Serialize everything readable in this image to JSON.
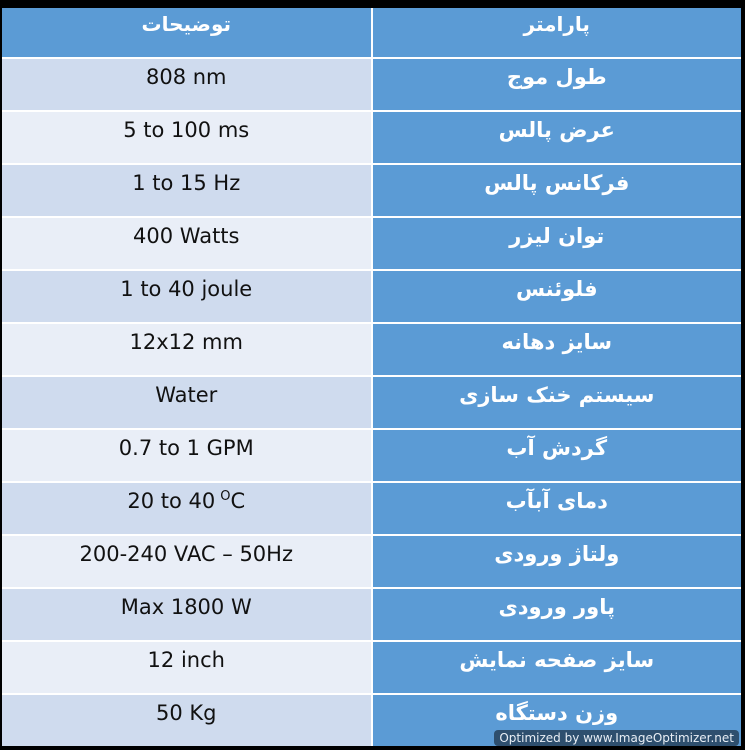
{
  "header": {
    "description": "توضیحات",
    "parameter": "پارامتر"
  },
  "rows": [
    {
      "parameter": "طول موج",
      "description": "808 nm"
    },
    {
      "parameter": "عرض پالس",
      "description": "5 to 100 ms"
    },
    {
      "parameter": "فرکانس پالس",
      "description": "1 to 15 Hz"
    },
    {
      "parameter": "توان لیزر",
      "description": "400 Watts"
    },
    {
      "parameter": "فلوئنس",
      "description": "1 to 40 joule"
    },
    {
      "parameter": "سایز دهانه",
      "description": "12x12 mm"
    },
    {
      "parameter": "سیستم خنک سازی",
      "description": "Water"
    },
    {
      "parameter": "گردش آب",
      "description": "0.7 to 1 GPM"
    },
    {
      "parameter": "دمای آبآب",
      "description": "20 to 40",
      "description_sup": "O",
      "description_suffix": "C"
    },
    {
      "parameter": "ولتاژ ورودی",
      "description": "200-240 VAC – 50Hz"
    },
    {
      "parameter": "پاور ورودی",
      "description": "Max 1800 W"
    },
    {
      "parameter": "سایز صفحه نمایش",
      "description": "12 inch"
    },
    {
      "parameter": "وزن دستگاه",
      "description": "50 Kg"
    }
  ],
  "watermark": "Optimized by www.ImageOptimizer.net",
  "colors": {
    "header_bg": "#5b9bd5",
    "param_bg": "#5b9bd5",
    "desc_dark": "#cfdbee",
    "desc_light": "#e9eef7"
  }
}
